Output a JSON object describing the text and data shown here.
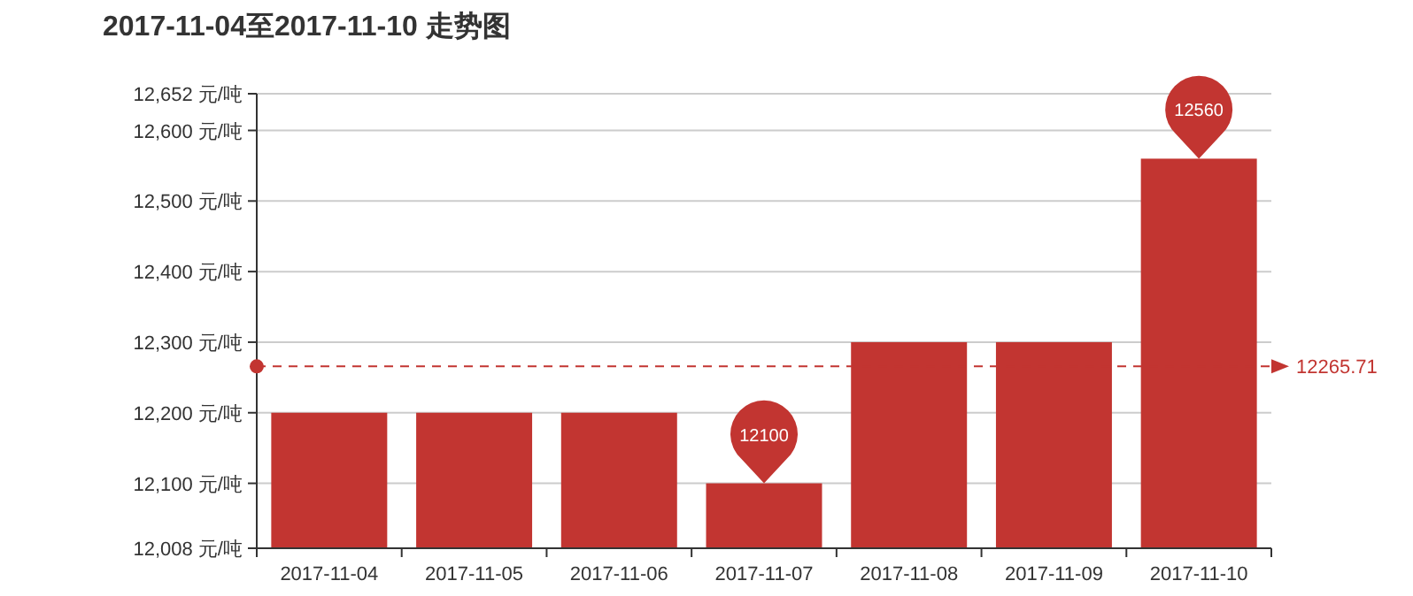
{
  "chart_data": {
    "type": "bar",
    "title": "2017-11-04至2017-11-10 走势图",
    "categories": [
      "2017-11-04",
      "2017-11-05",
      "2017-11-06",
      "2017-11-07",
      "2017-11-08",
      "2017-11-09",
      "2017-11-10"
    ],
    "series": [
      {
        "color": "#c23531",
        "values": [
          12200,
          12200,
          12200,
          12100,
          12300,
          12300,
          12560
        ]
      }
    ],
    "ylim": [
      12008,
      12652
    ],
    "yticks": [
      {
        "value": 12008,
        "label": "12,008 元/吨"
      },
      {
        "value": 12100,
        "label": "12,100 元/吨"
      },
      {
        "value": 12200,
        "label": "12,200 元/吨"
      },
      {
        "value": 12300,
        "label": "12,300 元/吨"
      },
      {
        "value": 12400,
        "label": "12,400 元/吨"
      },
      {
        "value": 12500,
        "label": "12,500 元/吨"
      },
      {
        "value": 12600,
        "label": "12,600 元/吨"
      },
      {
        "value": 12652,
        "label": "12,652 元/吨"
      }
    ],
    "grid": "y",
    "ref_lines": [
      {
        "axis": "y",
        "value": 12265.71,
        "label": "12265.71",
        "color": "#c23531",
        "line_style": "dashed"
      }
    ],
    "annotations": [
      {
        "text": "12560",
        "x": "2017-11-10",
        "y": 12560
      },
      {
        "text": "12100",
        "x": "2017-11-07",
        "y": 12100
      }
    ]
  }
}
